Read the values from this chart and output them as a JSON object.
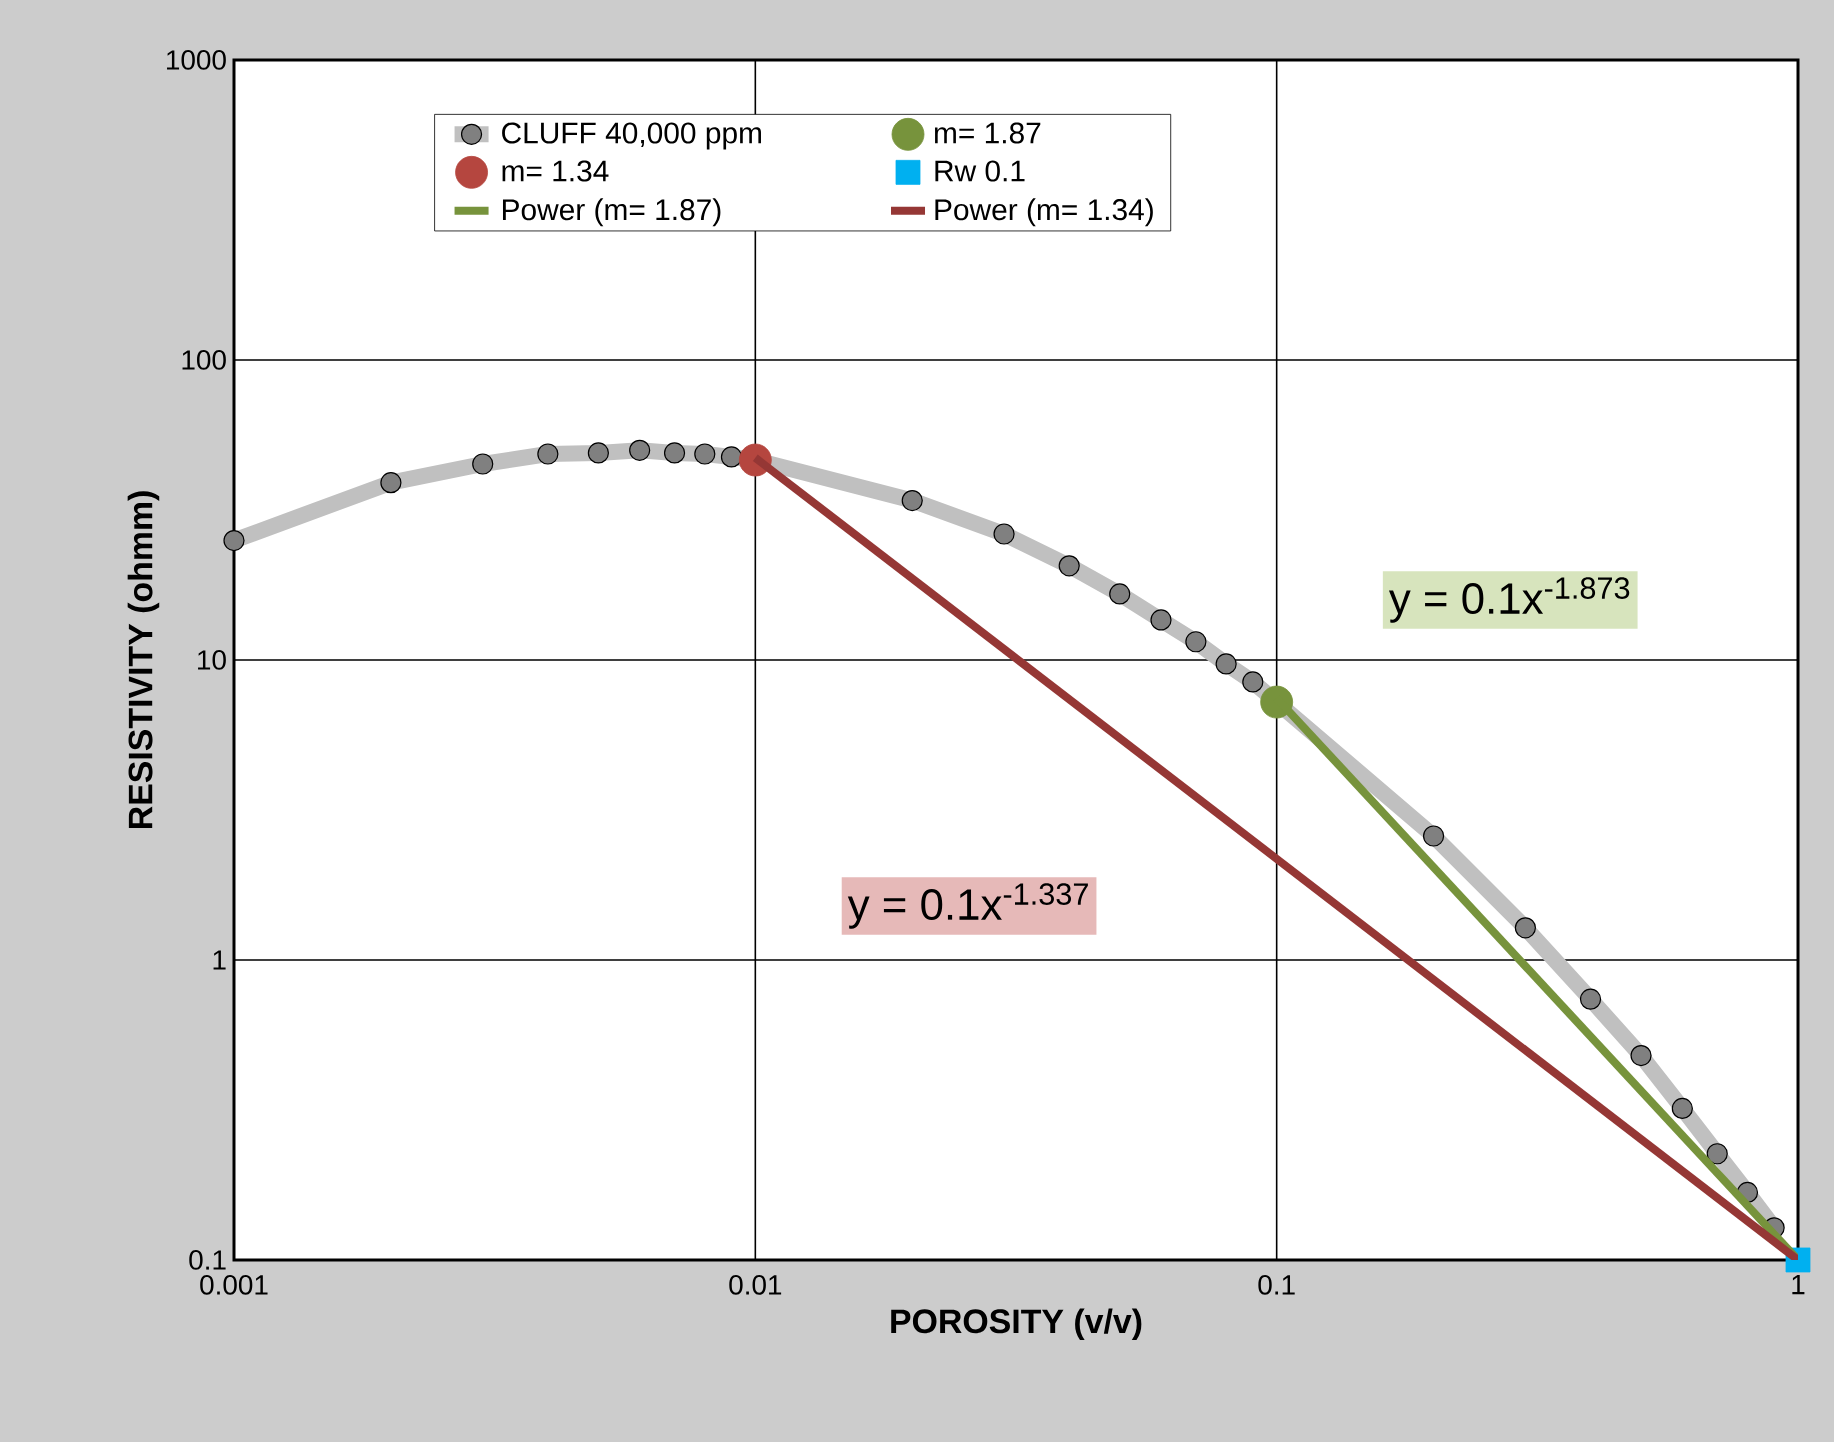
{
  "chart_data": {
    "type": "line",
    "xlabel": "POROSITY (v/v)",
    "ylabel": "RESISTIVITY (ohmm)",
    "log": "xy",
    "xlim": [
      0.001,
      1
    ],
    "ylim": [
      0.1,
      1000
    ],
    "xticks": [
      0.001,
      0.01,
      0.1,
      1
    ],
    "yticks": [
      0.1,
      1,
      10,
      100,
      1000
    ],
    "grid": true,
    "legend": "top",
    "series": [
      {
        "name": "CLUFF 40,000 ppm",
        "marker": "circle",
        "color": "#c0c0c0",
        "x": [
          0.001,
          0.002,
          0.003,
          0.004,
          0.005,
          0.006,
          0.007,
          0.008,
          0.009,
          0.01,
          0.02,
          0.03,
          0.04,
          0.05,
          0.06,
          0.07,
          0.08,
          0.09,
          0.1,
          0.2,
          0.3,
          0.4,
          0.5,
          0.6,
          0.7,
          0.8,
          0.9
        ],
        "values": [
          25,
          39,
          45,
          48.6,
          49,
          50,
          49,
          48.6,
          47.5,
          46.4,
          34,
          26.3,
          20.6,
          16.6,
          13.6,
          11.5,
          9.7,
          8.45,
          7.24,
          2.59,
          1.28,
          0.74,
          0.48,
          0.32,
          0.226,
          0.168,
          0.128
        ]
      },
      {
        "name": "m= 1.87",
        "type": "scatter",
        "marker": "circle",
        "color": "#77933c",
        "x": [
          0.1
        ],
        "values": [
          7.24
        ]
      },
      {
        "name": "m= 1.34",
        "type": "scatter",
        "marker": "circle",
        "color": "#b5463f",
        "x": [
          0.01
        ],
        "values": [
          46.4
        ]
      },
      {
        "name": "Rw 0.1",
        "type": "scatter",
        "marker": "square",
        "color": "#00b0f0",
        "x": [
          1
        ],
        "values": [
          0.1
        ]
      },
      {
        "name": "Power (m= 1.87)",
        "type": "line",
        "marker": "none",
        "color": "#77933c",
        "x": [
          0.1,
          1
        ],
        "values": [
          7.46,
          0.1
        ]
      },
      {
        "name": "Power (m= 1.34)",
        "type": "line",
        "marker": "none",
        "color": "#953735",
        "x": [
          0.01,
          1
        ],
        "values": [
          47.2,
          0.1
        ]
      }
    ],
    "annotations": [
      "y = 0.1x$^{-1.873}$",
      "y = 0.1x$^{-1.337}$"
    ]
  }
}
